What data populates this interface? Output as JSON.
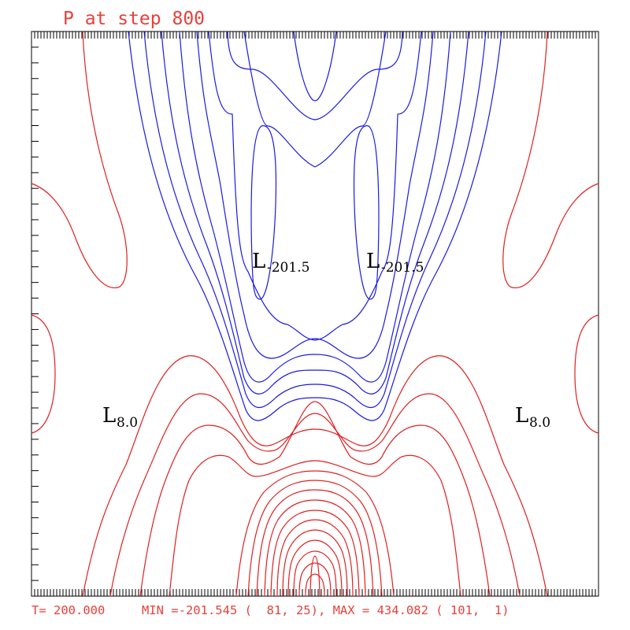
{
  "title": "P at step  800",
  "footer": "T= 200.000     MIN =-201.545 (  81, 25), MAX = 434.082 ( 101,  1)",
  "chart_data": {
    "type": "contour",
    "variable": "P",
    "step": 800,
    "time": 200.0,
    "min": {
      "value": -201.545,
      "i": 81,
      "j": 25
    },
    "max": {
      "value": 434.082,
      "i": 101,
      "j": 1
    },
    "labels": [
      {
        "letter": "L",
        "value": "-201.5"
      },
      {
        "letter": "L",
        "value": "-201.5"
      },
      {
        "letter": "L",
        "value": "8.0"
      },
      {
        "letter": "L",
        "value": "8.0"
      }
    ],
    "colors": {
      "negative": "#1a1ae6",
      "positive": "#e02020",
      "frame": "#000000",
      "text": "#e8403a"
    },
    "ticks": {
      "top": 180,
      "bottom": 180,
      "left": 36
    }
  }
}
